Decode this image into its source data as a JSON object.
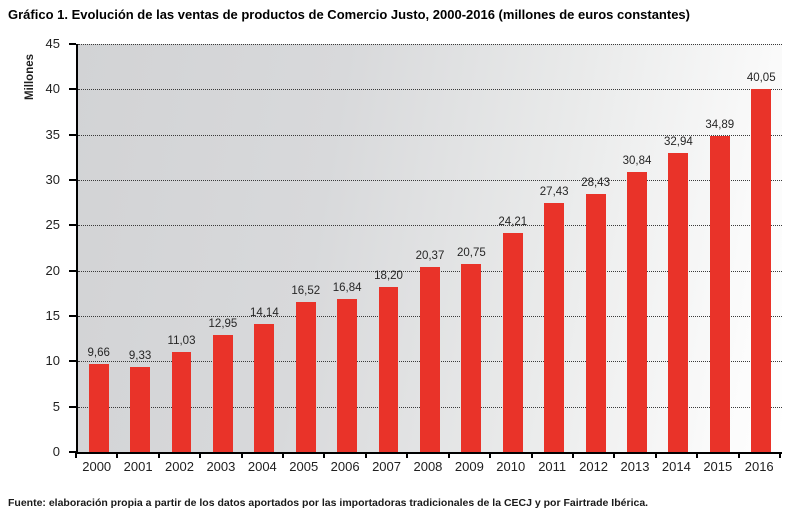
{
  "header": {
    "title": "Gráfico 1. Evolución de las ventas de productos de Comercio Justo, 2000-2016 (millones de euros constantes)"
  },
  "chart_data": {
    "type": "bar",
    "title": "Gráfico 1. Evolución de las ventas de productos de Comercio Justo, 2000-2016 (millones de euros constantes)",
    "xlabel": "",
    "ylabel": "Millones",
    "categories": [
      "2000",
      "2001",
      "2002",
      "2003",
      "2004",
      "2005",
      "2006",
      "2007",
      "2008",
      "2009",
      "2010",
      "2011",
      "2012",
      "2013",
      "2014",
      "2015",
      "2016"
    ],
    "values": [
      9.66,
      9.33,
      11.03,
      12.95,
      14.14,
      16.52,
      16.84,
      18.2,
      20.37,
      20.75,
      24.21,
      27.43,
      28.43,
      30.84,
      32.94,
      34.89,
      40.05
    ],
    "value_labels": [
      "9,66",
      "9,33",
      "11,03",
      "12,95",
      "14,14",
      "16,52",
      "16,84",
      "18,20",
      "20,37",
      "20,75",
      "24,21",
      "27,43",
      "28,43",
      "30,84",
      "32,94",
      "34,89",
      "40,05"
    ],
    "ylim": [
      0,
      45
    ],
    "y_tick_step": 5,
    "grid": "dotted-horizontal",
    "legend_position": "none",
    "bar_color": "#e93329",
    "plot_background": "gray-to-white-gradient"
  },
  "footer": {
    "source": "Fuente: elaboración propia a partir de los datos aportados por las importadoras tradicionales de la CECJ y por Fairtrade Ibérica."
  }
}
